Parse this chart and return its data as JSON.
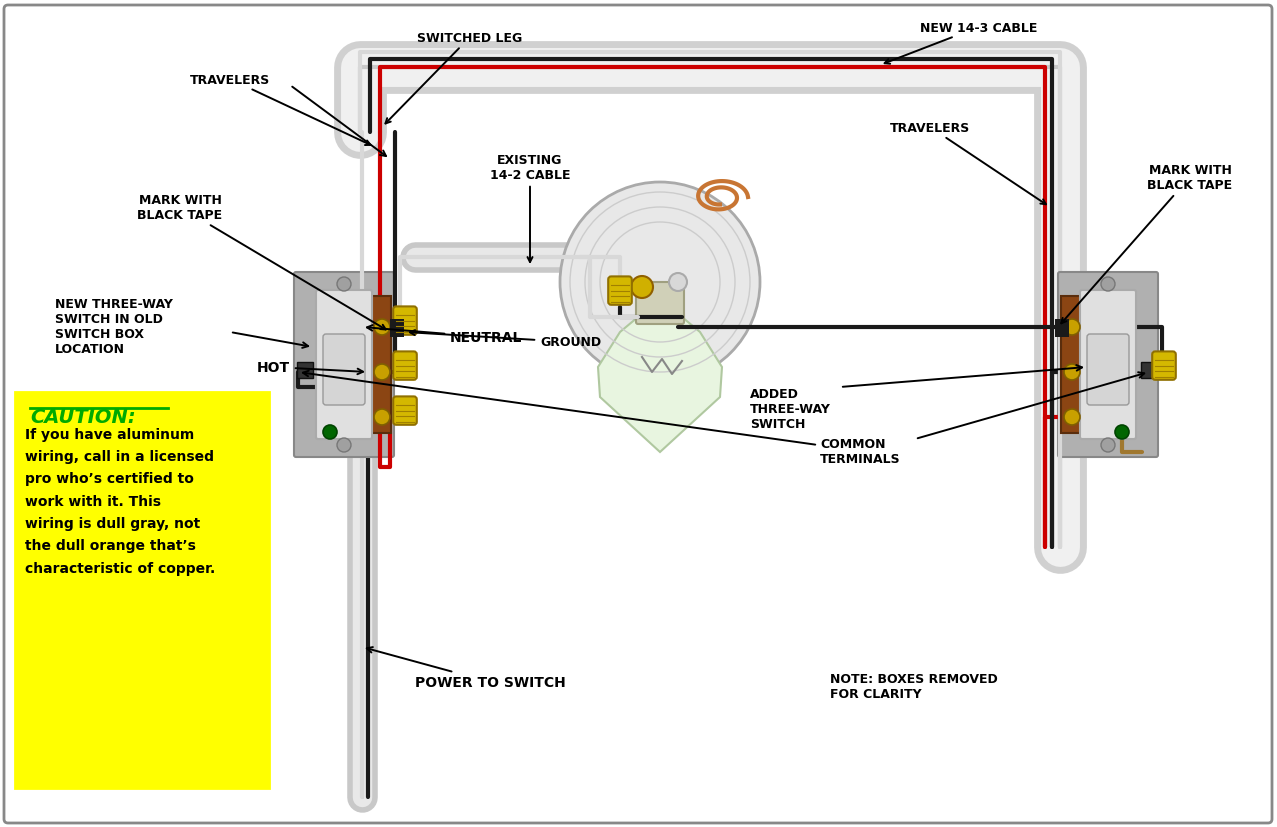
{
  "bg_color": "#ffffff",
  "wire_colors": {
    "black": "#1a1a1a",
    "red": "#cc0000",
    "white": "#d8d8d8",
    "ground": "#a07830",
    "copper": "#c87533",
    "cable_sheath": "#cccccc"
  },
  "colors": {
    "label_text": "#000000",
    "caution_bg": "#ffff00",
    "caution_title": "#00aa00",
    "caution_text": "#000000",
    "wire_nut": "#d4b800",
    "switch_bracket": "#b8b8b8",
    "switch_body": "#e0e0e0",
    "switch_toggle": "#d0d0d0",
    "screw_brass": "#c8a000",
    "screw_dark": "#444444",
    "screw_green": "#006600",
    "fixture_base": "#e5e5e5",
    "bulb_fill": "#e8f5e0",
    "conduit_outer": "#d0d0d0",
    "conduit_inner": "#f0f0f0"
  },
  "labels": {
    "travelers_left": "TRAVELERS",
    "switched_leg": "SWITCHED LEG",
    "new_cable": "NEW 14-3 CABLE",
    "mark_left": "MARK WITH\nBLACK TAPE",
    "existing_cable": "EXISTING\n14-2 CABLE",
    "travelers_right": "TRAVELERS",
    "mark_right": "MARK WITH\nBLACK TAPE",
    "new_three_way": "NEW THREE-WAY\nSWITCH IN OLD\nSWITCH BOX\nLOCATION",
    "ground": "GROUND",
    "added_three_way": "ADDED\nTHREE-WAY\nSWITCH",
    "hot": "HOT",
    "neutral": "NEUTRAL",
    "power_to_switch": "POWER TO SWITCH",
    "common_terminals": "COMMON\nTERMINALS",
    "note": "NOTE: BOXES REMOVED\nFOR CLARITY",
    "caution_title": "CAUTION:",
    "caution_body": "If you have aluminum\nwiring, call in a licensed\npro who’s certified to\nwork with it. This\nwiring is dull gray, not\nthe dull orange that’s\ncharacteristic of copper."
  }
}
